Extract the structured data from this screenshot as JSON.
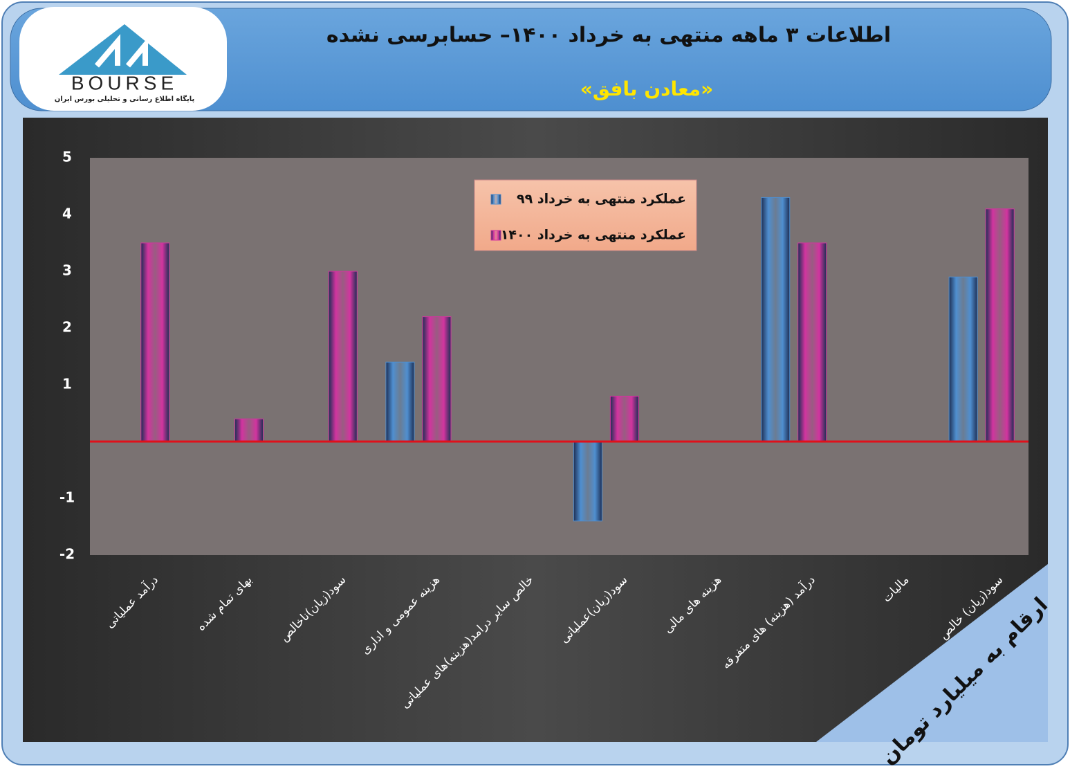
{
  "logo": {
    "name": "BOURSE",
    "tagline": "پایگاه اطلاع رسانی و تحلیلی بورس ایران"
  },
  "chart_data": {
    "type": "bar",
    "title": "اطلاعات ۳ ماهه منتهی به خرداد ۱۴۰۰– حسابرسی نشده",
    "subtitle": "«معادن بافق»",
    "note": "ارقام به میلیارد تومان",
    "categories": [
      "درآمد عملیاتی",
      "بهای تمام شده",
      "سود(زیان)ناخالص",
      "هزینه عمومی و اداری",
      "خالص سایر درامد(هزینه)های عملیاتی",
      "سود(زیان)عملیاتی",
      "هزینه های مالی",
      "درآمد (هزینه) های متفرقه",
      "مالیات",
      "سود(زیان) خالص"
    ],
    "series": [
      {
        "name": "عملکرد منتهی به خرداد ۹۹",
        "color": "#4f8fd0",
        "values": [
          null,
          null,
          null,
          1.4,
          null,
          -1.4,
          null,
          4.3,
          null,
          2.9
        ]
      },
      {
        "name": "عملکرد منتهی به خرداد ۱۴۰۰",
        "color": "#d2349f",
        "values": [
          3.5,
          0.4,
          3.0,
          2.2,
          null,
          0.8,
          null,
          3.5,
          null,
          4.1
        ]
      }
    ],
    "ylim": [
      -2,
      5
    ],
    "yticks": [
      -2,
      -1,
      1,
      2,
      3,
      4,
      5
    ],
    "grid": false,
    "zero_line_color": "#e0101a"
  }
}
